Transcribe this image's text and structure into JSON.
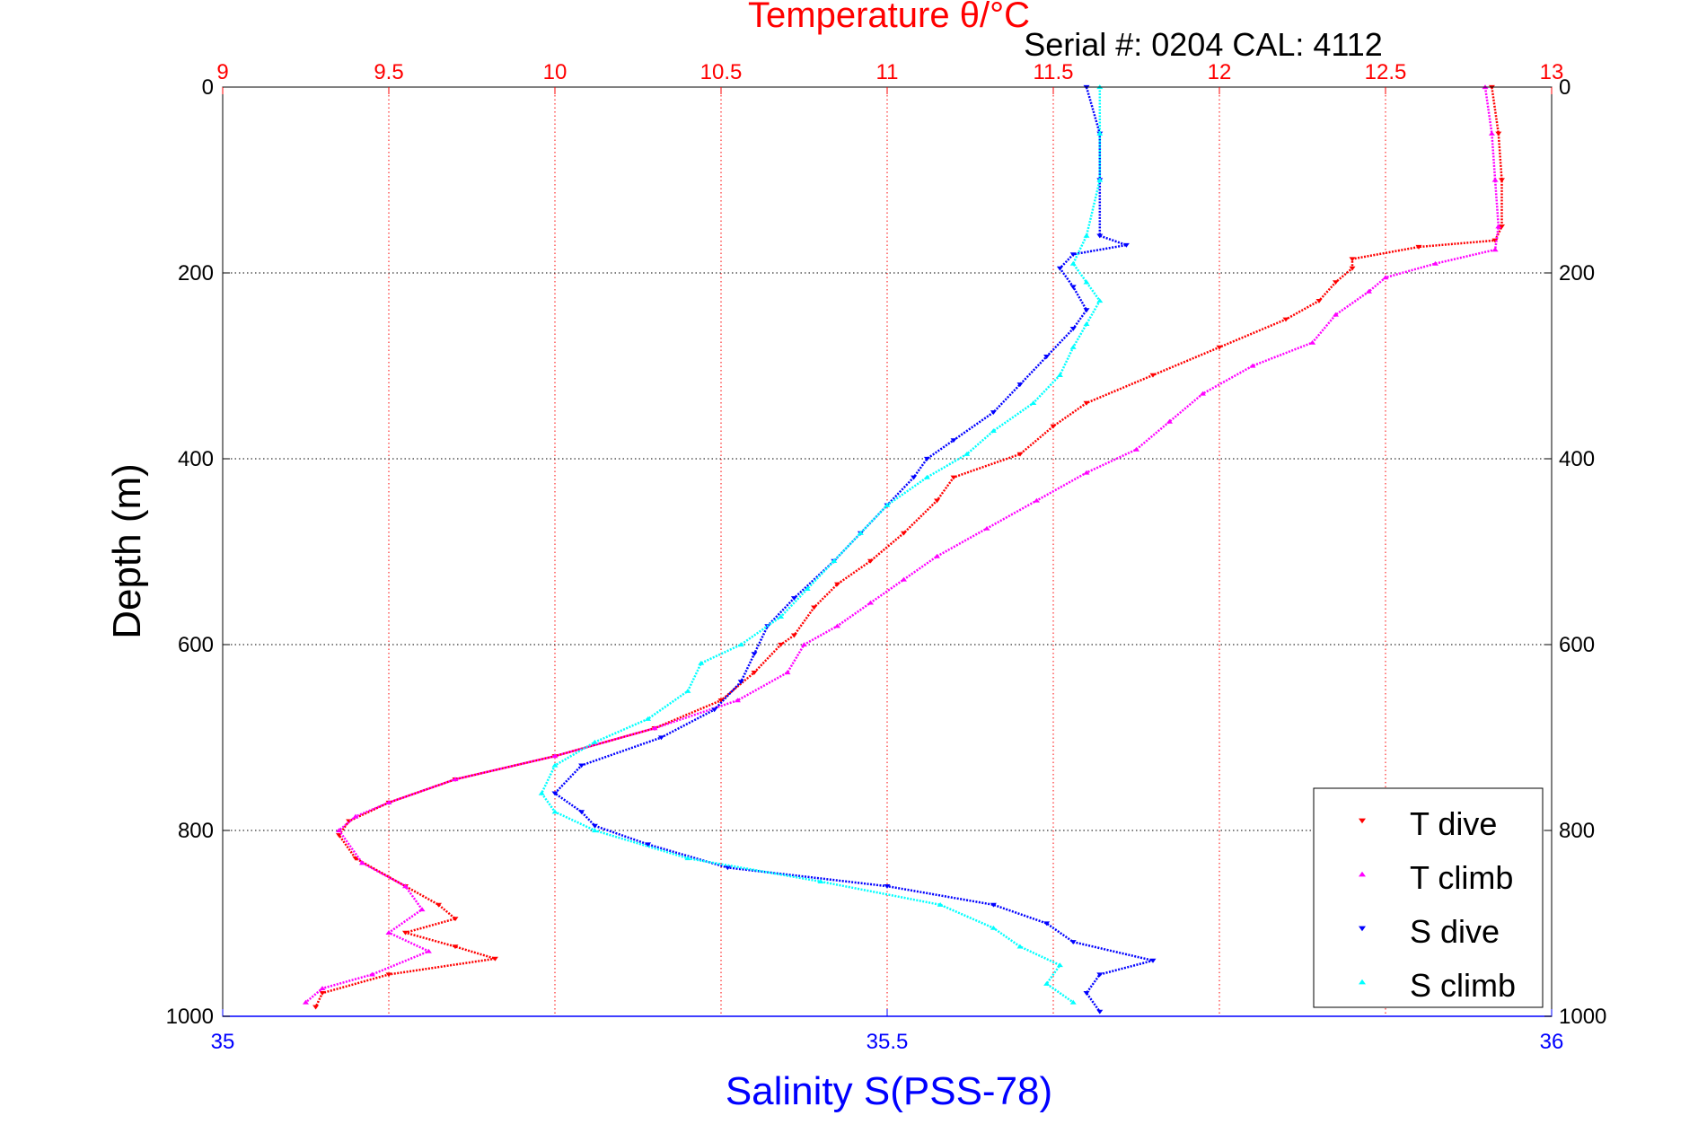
{
  "chart_data": {
    "type": "scatter",
    "title": "Temperature θ/°C",
    "subtitle": "Serial #: 0204  CAL: 4112",
    "xlabel_bottom": "Salinity S(PSS-78)",
    "xlabel_top": "Temperature θ/°C",
    "ylabel": "Depth (m)",
    "x_top_lim": [
      9,
      13
    ],
    "x_bottom_lim": [
      35,
      36
    ],
    "ylim": [
      0,
      1000
    ],
    "y_reversed": true,
    "grid": true,
    "legend_position": "bottom-right",
    "x_top_ticks": [
      "9",
      "9.5",
      "10",
      "10.5",
      "11",
      "11.5",
      "12",
      "12.5",
      "13"
    ],
    "x_bottom_ticks": [
      "35",
      "35.5",
      "36"
    ],
    "y_ticks": [
      "0",
      "200",
      "400",
      "600",
      "800",
      "1000"
    ],
    "colors": {
      "temperature": "#ff0000",
      "salinity": "#0000ff",
      "grid_temperature": "#ff0000",
      "grid_depth": "#000000"
    },
    "series": [
      {
        "name": "T dive",
        "axis": "top",
        "color": "#ff0000",
        "marker": "triangle-down",
        "points": [
          [
            12.82,
            0
          ],
          [
            12.84,
            50
          ],
          [
            12.85,
            100
          ],
          [
            12.85,
            150
          ],
          [
            12.83,
            165
          ],
          [
            12.6,
            172
          ],
          [
            12.4,
            185
          ],
          [
            12.4,
            195
          ],
          [
            12.35,
            210
          ],
          [
            12.3,
            230
          ],
          [
            12.2,
            250
          ],
          [
            12.0,
            280
          ],
          [
            11.8,
            310
          ],
          [
            11.6,
            340
          ],
          [
            11.5,
            365
          ],
          [
            11.4,
            395
          ],
          [
            11.2,
            420
          ],
          [
            11.15,
            445
          ],
          [
            11.05,
            480
          ],
          [
            10.95,
            510
          ],
          [
            10.85,
            535
          ],
          [
            10.78,
            560
          ],
          [
            10.72,
            590
          ],
          [
            10.68,
            600
          ],
          [
            10.6,
            630
          ],
          [
            10.5,
            660
          ],
          [
            10.3,
            690
          ],
          [
            10.0,
            720
          ],
          [
            9.7,
            745
          ],
          [
            9.5,
            770
          ],
          [
            9.38,
            790
          ],
          [
            9.35,
            805
          ],
          [
            9.4,
            830
          ],
          [
            9.55,
            860
          ],
          [
            9.65,
            880
          ],
          [
            9.7,
            895
          ],
          [
            9.55,
            910
          ],
          [
            9.7,
            925
          ],
          [
            9.82,
            938
          ],
          [
            9.5,
            955
          ],
          [
            9.3,
            975
          ],
          [
            9.28,
            990
          ]
        ]
      },
      {
        "name": "T climb",
        "axis": "top",
        "color": "#ff00ff",
        "marker": "triangle-up",
        "points": [
          [
            12.8,
            0
          ],
          [
            12.82,
            50
          ],
          [
            12.83,
            100
          ],
          [
            12.84,
            150
          ],
          [
            12.83,
            175
          ],
          [
            12.65,
            190
          ],
          [
            12.5,
            205
          ],
          [
            12.45,
            220
          ],
          [
            12.35,
            245
          ],
          [
            12.28,
            275
          ],
          [
            12.1,
            300
          ],
          [
            11.95,
            330
          ],
          [
            11.85,
            360
          ],
          [
            11.75,
            390
          ],
          [
            11.6,
            415
          ],
          [
            11.45,
            445
          ],
          [
            11.3,
            475
          ],
          [
            11.15,
            505
          ],
          [
            11.05,
            530
          ],
          [
            10.95,
            555
          ],
          [
            10.85,
            580
          ],
          [
            10.75,
            600
          ],
          [
            10.7,
            630
          ],
          [
            10.55,
            660
          ],
          [
            10.3,
            690
          ],
          [
            10.0,
            720
          ],
          [
            9.7,
            745
          ],
          [
            9.5,
            770
          ],
          [
            9.4,
            785
          ],
          [
            9.35,
            800
          ],
          [
            9.42,
            835
          ],
          [
            9.55,
            860
          ],
          [
            9.6,
            885
          ],
          [
            9.5,
            910
          ],
          [
            9.62,
            930
          ],
          [
            9.45,
            955
          ],
          [
            9.3,
            970
          ],
          [
            9.25,
            985
          ]
        ]
      },
      {
        "name": "S dive",
        "axis": "bottom",
        "color": "#0000ff",
        "marker": "triangle-down",
        "points": [
          [
            35.65,
            0
          ],
          [
            35.66,
            50
          ],
          [
            35.66,
            100
          ],
          [
            35.66,
            160
          ],
          [
            35.68,
            170
          ],
          [
            35.64,
            180
          ],
          [
            35.63,
            195
          ],
          [
            35.64,
            215
          ],
          [
            35.65,
            240
          ],
          [
            35.64,
            260
          ],
          [
            35.62,
            290
          ],
          [
            35.6,
            320
          ],
          [
            35.58,
            350
          ],
          [
            35.55,
            380
          ],
          [
            35.53,
            400
          ],
          [
            35.52,
            420
          ],
          [
            35.5,
            450
          ],
          [
            35.48,
            480
          ],
          [
            35.46,
            510
          ],
          [
            35.43,
            550
          ],
          [
            35.41,
            580
          ],
          [
            35.4,
            610
          ],
          [
            35.39,
            640
          ],
          [
            35.37,
            670
          ],
          [
            35.33,
            700
          ],
          [
            35.27,
            730
          ],
          [
            35.25,
            760
          ],
          [
            35.27,
            780
          ],
          [
            35.28,
            795
          ],
          [
            35.32,
            815
          ],
          [
            35.38,
            840
          ],
          [
            35.5,
            860
          ],
          [
            35.58,
            880
          ],
          [
            35.62,
            900
          ],
          [
            35.64,
            920
          ],
          [
            35.7,
            940
          ],
          [
            35.66,
            955
          ],
          [
            35.65,
            975
          ],
          [
            35.66,
            995
          ]
        ]
      },
      {
        "name": "S climb",
        "axis": "bottom",
        "color": "#00ffff",
        "marker": "triangle-up",
        "points": [
          [
            35.66,
            0
          ],
          [
            35.66,
            50
          ],
          [
            35.66,
            100
          ],
          [
            35.65,
            160
          ],
          [
            35.64,
            190
          ],
          [
            35.65,
            210
          ],
          [
            35.66,
            230
          ],
          [
            35.65,
            255
          ],
          [
            35.64,
            280
          ],
          [
            35.63,
            310
          ],
          [
            35.61,
            340
          ],
          [
            35.58,
            370
          ],
          [
            35.56,
            395
          ],
          [
            35.53,
            420
          ],
          [
            35.5,
            450
          ],
          [
            35.48,
            480
          ],
          [
            35.46,
            510
          ],
          [
            35.44,
            540
          ],
          [
            35.42,
            570
          ],
          [
            35.39,
            600
          ],
          [
            35.36,
            620
          ],
          [
            35.35,
            650
          ],
          [
            35.32,
            680
          ],
          [
            35.28,
            705
          ],
          [
            35.25,
            730
          ],
          [
            35.24,
            760
          ],
          [
            35.25,
            780
          ],
          [
            35.28,
            800
          ],
          [
            35.35,
            830
          ],
          [
            35.45,
            855
          ],
          [
            35.54,
            880
          ],
          [
            35.58,
            905
          ],
          [
            35.6,
            925
          ],
          [
            35.63,
            945
          ],
          [
            35.62,
            965
          ],
          [
            35.64,
            985
          ]
        ]
      }
    ]
  }
}
